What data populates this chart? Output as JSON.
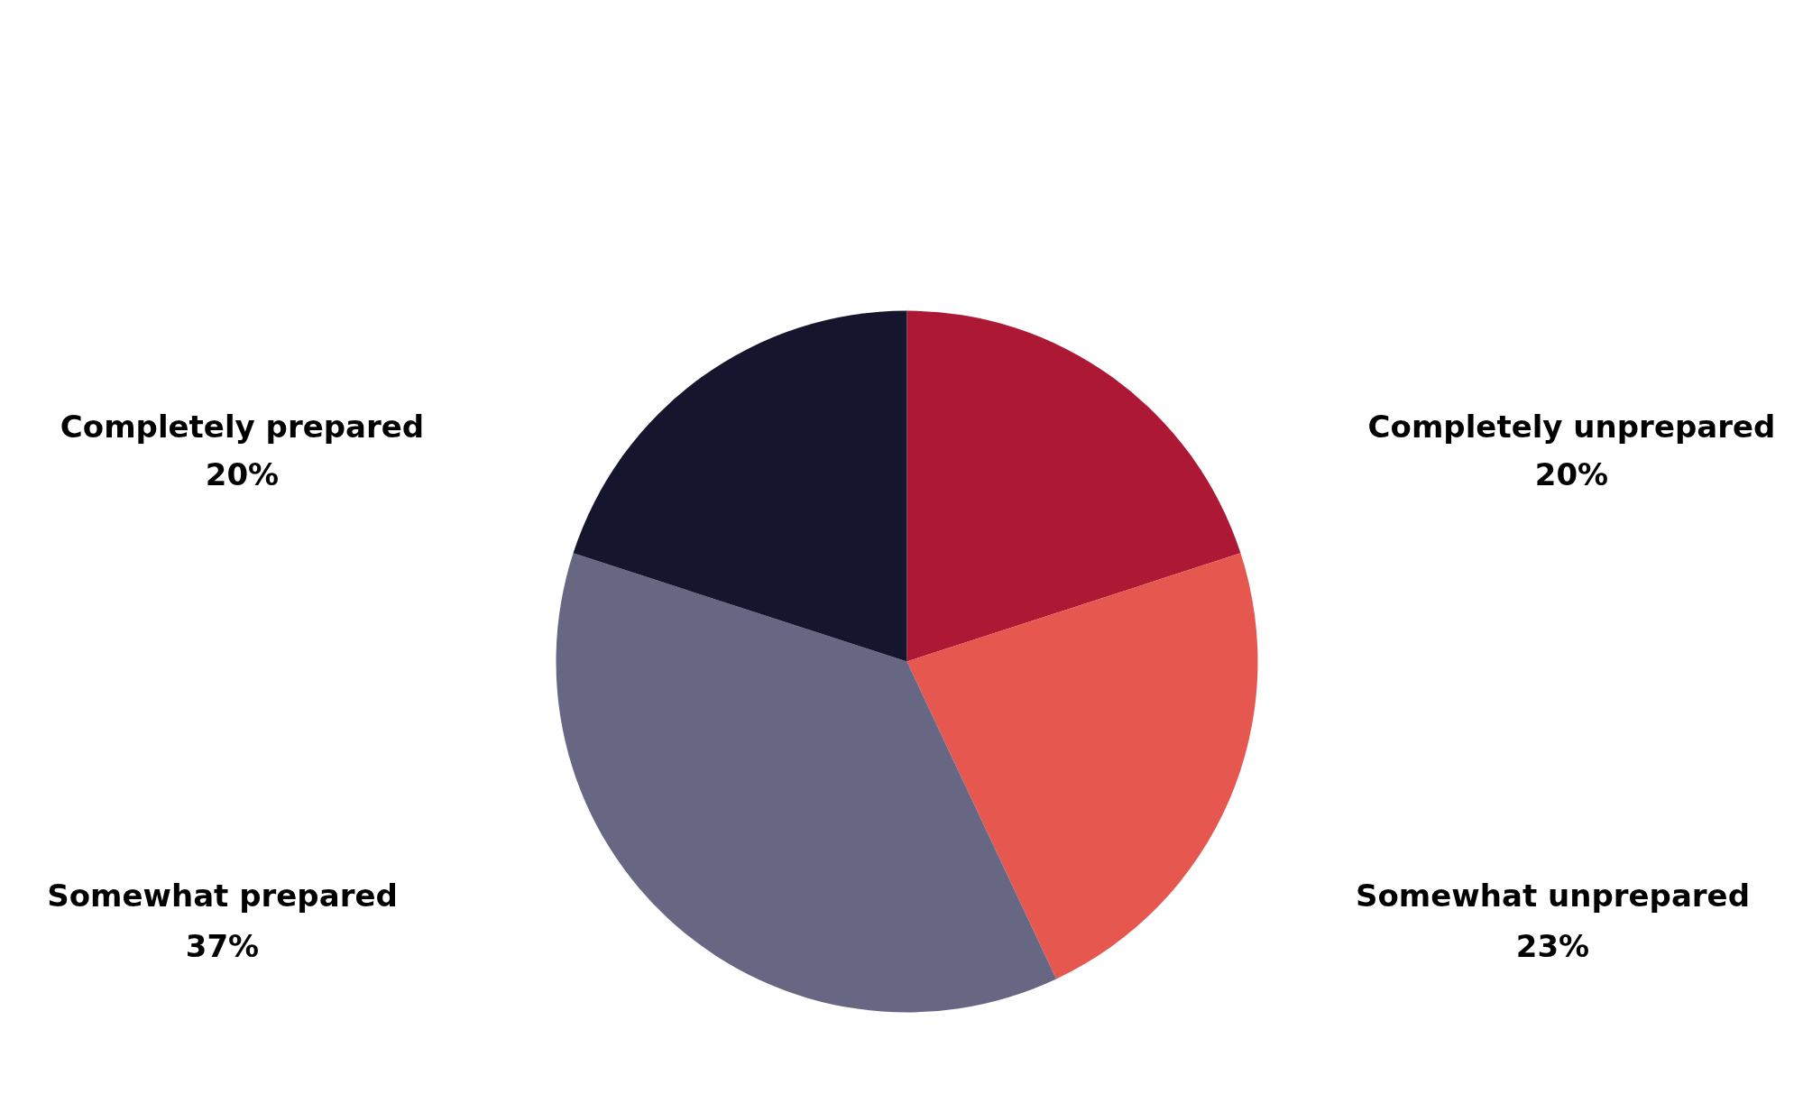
{
  "chart_data": {
    "type": "pie",
    "categories": [
      "Completely unprepared",
      "Somewhat unprepared",
      "Somewhat prepared",
      "Completely prepared"
    ],
    "values": [
      20,
      23,
      37,
      20
    ],
    "colors": [
      "#ad1835",
      "#e5574f",
      "#686783",
      "#15162d"
    ],
    "value_labels": [
      "20%",
      "23%",
      "37%",
      "20%"
    ]
  }
}
